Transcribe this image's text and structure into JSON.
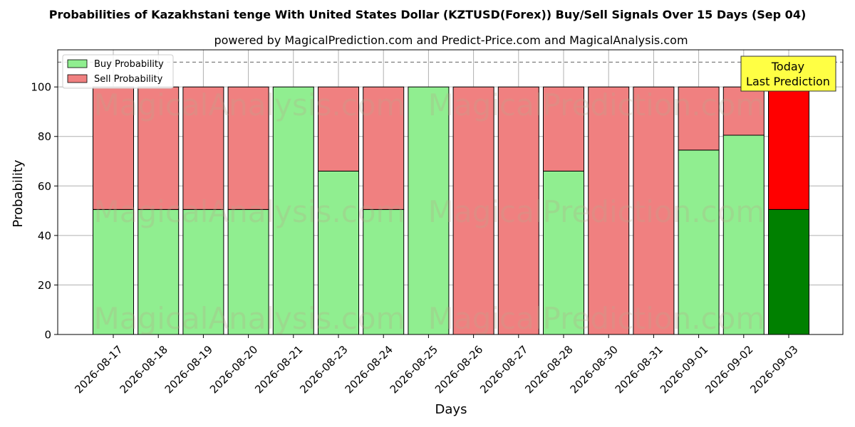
{
  "chart_data": {
    "type": "bar",
    "stacked": true,
    "title": "Probabilities of Kazakhstani tenge With United States Dollar (KZTUSD(Forex)) Buy/Sell Signals Over 15 Days (Sep 04)",
    "subtitle": "powered by MagicalPrediction.com and Predict-Price.com and MagicalAnalysis.com",
    "xlabel": "Days",
    "ylabel": "Probability",
    "ylim": [
      0,
      115
    ],
    "yticks": [
      0,
      20,
      40,
      60,
      80,
      100
    ],
    "grid": true,
    "reference_line": 110,
    "legend_position": "top-left",
    "categories": [
      "2026-08-17",
      "2026-08-18",
      "2026-08-19",
      "2026-08-20",
      "2026-08-21",
      "2026-08-23",
      "2026-08-24",
      "2026-08-25",
      "2026-08-26",
      "2026-08-27",
      "2026-08-28",
      "2026-08-30",
      "2026-08-31",
      "2026-09-01",
      "2026-09-02",
      "2026-09-03"
    ],
    "series": [
      {
        "name": "Buy Probability",
        "color": "#90ee90",
        "highlight_color": "#008000",
        "values": [
          50.5,
          50.5,
          50.5,
          50.5,
          100,
          66,
          50.5,
          100,
          0,
          0,
          66,
          0,
          0,
          74.5,
          80.5,
          50.5
        ]
      },
      {
        "name": "Sell Probability",
        "color": "#f08080",
        "highlight_color": "#ff0000",
        "values": [
          49.5,
          49.5,
          49.5,
          49.5,
          0,
          34,
          49.5,
          0,
          100,
          100,
          34,
          100,
          100,
          25.5,
          19.5,
          49.5
        ]
      }
    ],
    "highlight_index": 15,
    "annotation": {
      "line1": "Today",
      "line2": "Last Prediction",
      "color": "#ffff44"
    },
    "watermarks": [
      "MagicalAnalysis.com",
      "MagicalPrediction.com"
    ]
  }
}
